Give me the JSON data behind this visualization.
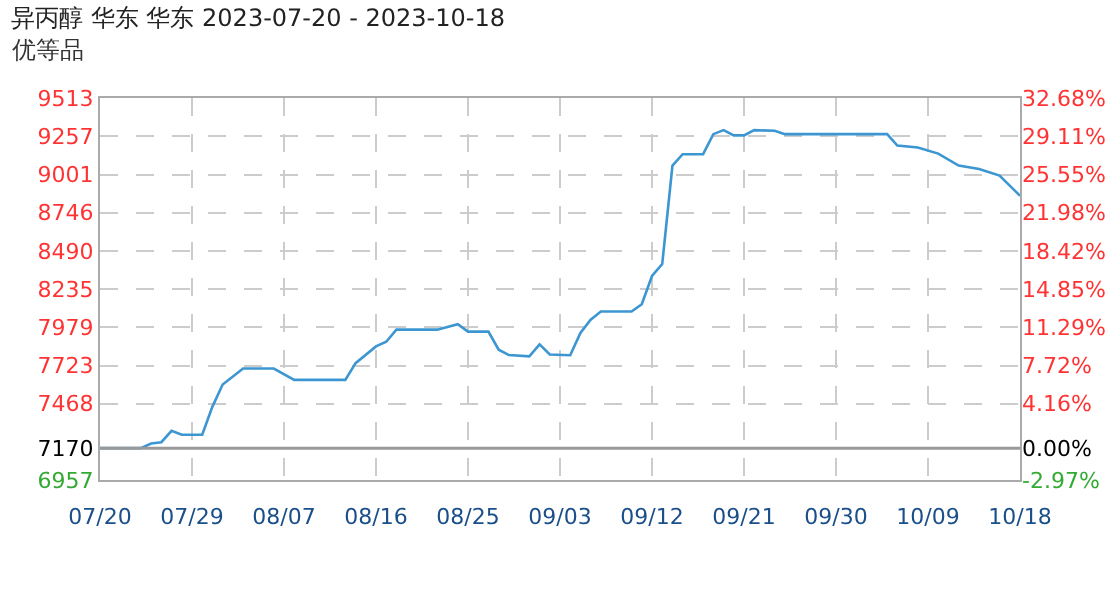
{
  "chart_data": {
    "type": "line",
    "title": "异丙醇 华东 华东 2023-07-20 - 2023-10-18",
    "subtitle": "优等品",
    "x": [
      "2023-07-20",
      "2023-07-24",
      "2023-07-25",
      "2023-07-26",
      "2023-07-27",
      "2023-07-28",
      "2023-07-30",
      "2023-07-31",
      "2023-08-01",
      "2023-08-03",
      "2023-08-06",
      "2023-08-08",
      "2023-08-13",
      "2023-08-14",
      "2023-08-16",
      "2023-08-17",
      "2023-08-18",
      "2023-08-22",
      "2023-08-24",
      "2023-08-25",
      "2023-08-27",
      "2023-08-28",
      "2023-08-29",
      "2023-08-31",
      "2023-09-01",
      "2023-09-02",
      "2023-09-04",
      "2023-09-05",
      "2023-09-06",
      "2023-09-07",
      "2023-09-10",
      "2023-09-11",
      "2023-09-12",
      "2023-09-13",
      "2023-09-14",
      "2023-09-15",
      "2023-09-17",
      "2023-09-18",
      "2023-09-19",
      "2023-09-20",
      "2023-09-21",
      "2023-09-22",
      "2023-09-24",
      "2023-09-25",
      "2023-10-05",
      "2023-10-06",
      "2023-10-08",
      "2023-10-10",
      "2023-10-12",
      "2023-10-14",
      "2023-10-16",
      "2023-10-18"
    ],
    "series": [
      {
        "color": "#3c96d2",
        "values": [
          7170,
          7170,
          7201,
          7210,
          7286,
          7260,
          7260,
          7448,
          7596,
          7703,
          7703,
          7627,
          7627,
          7739,
          7851,
          7882,
          7963,
          7963,
          7999,
          7950,
          7950,
          7829,
          7793,
          7784,
          7865,
          7797,
          7792,
          7941,
          8030,
          8084,
          8084,
          8133,
          8322,
          8402,
          9061,
          9137,
          9137,
          9271,
          9298,
          9263,
          9263,
          9298,
          9294,
          9271,
          9271,
          9195,
          9182,
          9141,
          9061,
          9038,
          8994,
          8859
        ]
      }
    ],
    "xlim": [
      "2023-07-20",
      "2023-10-18"
    ],
    "xticks": [
      {
        "value": "2023-07-20",
        "label": "07/20"
      },
      {
        "value": "2023-07-29",
        "label": "07/29"
      },
      {
        "value": "2023-08-07",
        "label": "08/07"
      },
      {
        "value": "2023-08-16",
        "label": "08/16"
      },
      {
        "value": "2023-08-25",
        "label": "08/25"
      },
      {
        "value": "2023-09-03",
        "label": "09/03"
      },
      {
        "value": "2023-09-12",
        "label": "09/12"
      },
      {
        "value": "2023-09-21",
        "label": "09/21"
      },
      {
        "value": "2023-09-30",
        "label": "09/30"
      },
      {
        "value": "2023-10-09",
        "label": "10/09"
      },
      {
        "value": "2023-10-18",
        "label": "10/18"
      }
    ],
    "ylim": [
      6957,
      9513
    ],
    "yticks": [
      6957,
      7170,
      7468,
      7723,
      7979,
      8235,
      8490,
      8746,
      9001,
      9257,
      9513
    ],
    "y2lim": [
      -2.97,
      32.68
    ],
    "y2ticks": [
      {
        "value": -2.97,
        "label": "-2.97%"
      },
      {
        "value": 0,
        "label": "0.00%"
      },
      {
        "value": 4.16,
        "label": "4.16%"
      },
      {
        "value": 7.72,
        "label": "7.72%"
      },
      {
        "value": 11.29,
        "label": "11.29%"
      },
      {
        "value": 14.85,
        "label": "14.85%"
      },
      {
        "value": 18.42,
        "label": "18.42%"
      },
      {
        "value": 21.98,
        "label": "21.98%"
      },
      {
        "value": 25.55,
        "label": "25.55%"
      },
      {
        "value": 29.11,
        "label": "29.11%"
      },
      {
        "value": 32.68,
        "label": "32.68%"
      }
    ],
    "ref_lines": [
      {
        "axis": "y",
        "value": 7170,
        "color": "#999999"
      }
    ],
    "grid": true,
    "legend": false,
    "marker": "none",
    "line_style": "solid"
  }
}
